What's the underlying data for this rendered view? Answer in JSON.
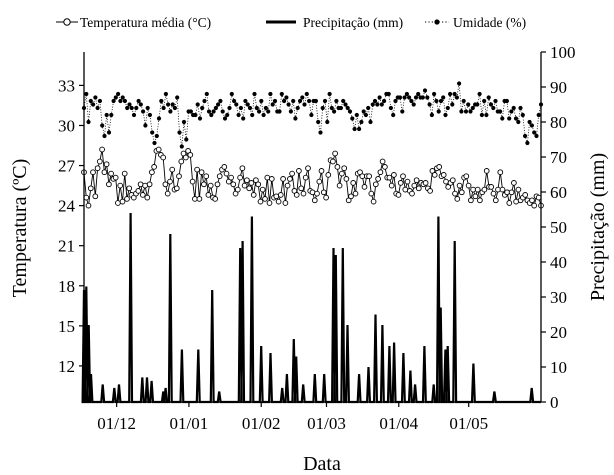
{
  "chart_data": {
    "type": "line",
    "xlabel": "Data",
    "ylabel_left": "Temperatura (ºC)",
    "ylabel_right": "Precipitação (mm)",
    "x_ticks": [
      "01/12",
      "01/01",
      "01/02",
      "01/03",
      "01/04",
      "01/05"
    ],
    "x_tick_day": [
      14,
      45,
      76,
      104,
      135,
      165
    ],
    "x_range_days": [
      0,
      196
    ],
    "ylim_left": [
      9.3,
      35.5
    ],
    "yticks_left": [
      "12",
      "15",
      "18",
      "21",
      "24",
      "27",
      "30",
      "33"
    ],
    "ylim_right": [
      0,
      100
    ],
    "yticks_right": [
      "0",
      "10",
      "20",
      "30",
      "40",
      "50",
      "60",
      "70",
      "80",
      "90",
      "100"
    ],
    "grid": false,
    "legend_position": "top",
    "colors": {
      "line": "#000000",
      "marker_fill": "#ffffff"
    },
    "series": [
      {
        "name": "Temperatura média (°C)",
        "axis": "left",
        "style": "solid-line-open-circle",
        "values": [
          26.5,
          24.6,
          24.0,
          25.3,
          26.5,
          24.7,
          26.8,
          27.3,
          28.2,
          26.5,
          27.1,
          25.6,
          26.4,
          26.0,
          26.1,
          24.2,
          25.5,
          24.3,
          26.4,
          24.5,
          25.3,
          24.8,
          24.6,
          24.9,
          25.1,
          25.6,
          24.8,
          25.5,
          24.6,
          25.6,
          26.5,
          26.9,
          28.1,
          28.2,
          27.8,
          27.6,
          25.6,
          24.9,
          25.8,
          26.7,
          25.2,
          25.3,
          26.2,
          27.3,
          27.9,
          27.6,
          28.1,
          27.8,
          25.8,
          24.5,
          26.7,
          24.5,
          26.5,
          25.6,
          26.2,
          24.8,
          25.5,
          24.6,
          24.5,
          25.6,
          26.2,
          26.7,
          26.9,
          26.4,
          25.8,
          26.1,
          25.6,
          24.9,
          25.2,
          26.1,
          26.8,
          25.5,
          25.9,
          25.3,
          25.7,
          24.8,
          25.9,
          25.6,
          24.3,
          25.2,
          24.5,
          26.1,
          24.2,
          26.0,
          24.6,
          24.7,
          24.3,
          24.8,
          26.0,
          24.2,
          25.5,
          26.0,
          26.4,
          25.1,
          24.8,
          26.6,
          25.3,
          24.9,
          26.1,
          26.8,
          25.1,
          25.0,
          24.4,
          24.9,
          25.8,
          26.6,
          25.0,
          24.6,
          26.3,
          27.4,
          27.3,
          27.9,
          26.9,
          25.5,
          26.4,
          26.8,
          26.0,
          24.4,
          24.7,
          25.7,
          24.9,
          26.4,
          26.5,
          26.2,
          25.4,
          26.2,
          26.2,
          24.9,
          24.3,
          25.6,
          26.0,
          26.5,
          27.3,
          26.9,
          26.1,
          26.1,
          25.5,
          26.3,
          24.9,
          24.8,
          25.7,
          26.2,
          25.2,
          25.8,
          25.1,
          24.9,
          25.5,
          25.9,
          25.3,
          25.7,
          25.6,
          25.7,
          25.3,
          25.1,
          26.6,
          26.3,
          26.8,
          26.9,
          26.2,
          26.3,
          25.8,
          25.4,
          25.7,
          25.9,
          24.9,
          24.5,
          25.5,
          25.0,
          26.1,
          26.2,
          25.5,
          24.4,
          25.2,
          24.7,
          25.2,
          24.4,
          25.0,
          25.2,
          26.6,
          25.4,
          25.4,
          24.9,
          24.4,
          25.2,
          26.5,
          25.2,
          24.8,
          25.0,
          24.2,
          25.0,
          25.7,
          24.3,
          25.2,
          24.4,
          24.6,
          24.8,
          24.4,
          24.2,
          24.4,
          24.0,
          24.7,
          24.6,
          24.0
        ]
      },
      {
        "name": "Precipitação (mm)",
        "axis": "right",
        "style": "thick-line",
        "events": [
          {
            "day": 0,
            "mm": 32
          },
          {
            "day": 1,
            "mm": 33
          },
          {
            "day": 2,
            "mm": 22
          },
          {
            "day": 3,
            "mm": 8
          },
          {
            "day": 8,
            "mm": 5
          },
          {
            "day": 13,
            "mm": 4
          },
          {
            "day": 15,
            "mm": 5
          },
          {
            "day": 20,
            "mm": 54
          },
          {
            "day": 25,
            "mm": 7
          },
          {
            "day": 27,
            "mm": 7
          },
          {
            "day": 29,
            "mm": 6
          },
          {
            "day": 34,
            "mm": 3
          },
          {
            "day": 35,
            "mm": 4
          },
          {
            "day": 37,
            "mm": 48
          },
          {
            "day": 42,
            "mm": 15
          },
          {
            "day": 49,
            "mm": 15
          },
          {
            "day": 55,
            "mm": 32
          },
          {
            "day": 58,
            "mm": 3
          },
          {
            "day": 67,
            "mm": 44
          },
          {
            "day": 68,
            "mm": 46
          },
          {
            "day": 72,
            "mm": 53
          },
          {
            "day": 76,
            "mm": 16
          },
          {
            "day": 80,
            "mm": 14
          },
          {
            "day": 85,
            "mm": 4
          },
          {
            "day": 87,
            "mm": 8
          },
          {
            "day": 90,
            "mm": 18
          },
          {
            "day": 91,
            "mm": 13
          },
          {
            "day": 94,
            "mm": 5
          },
          {
            "day": 99,
            "mm": 8
          },
          {
            "day": 103,
            "mm": 8
          },
          {
            "day": 107,
            "mm": 44
          },
          {
            "day": 108,
            "mm": 42
          },
          {
            "day": 111,
            "mm": 44
          },
          {
            "day": 113,
            "mm": 22
          },
          {
            "day": 118,
            "mm": 8
          },
          {
            "day": 122,
            "mm": 10
          },
          {
            "day": 125,
            "mm": 25
          },
          {
            "day": 128,
            "mm": 22
          },
          {
            "day": 131,
            "mm": 16
          },
          {
            "day": 133,
            "mm": 17
          },
          {
            "day": 137,
            "mm": 14
          },
          {
            "day": 140,
            "mm": 9
          },
          {
            "day": 142,
            "mm": 5
          },
          {
            "day": 146,
            "mm": 16
          },
          {
            "day": 150,
            "mm": 5
          },
          {
            "day": 152,
            "mm": 53
          },
          {
            "day": 153,
            "mm": 27
          },
          {
            "day": 155,
            "mm": 15
          },
          {
            "day": 156,
            "mm": 16
          },
          {
            "day": 159,
            "mm": 46
          },
          {
            "day": 167,
            "mm": 11
          },
          {
            "day": 176,
            "mm": 3
          },
          {
            "day": 192,
            "mm": 4
          }
        ]
      },
      {
        "name": "Umidade (%)",
        "axis": "right",
        "style": "dotted-line-filled-dot",
        "values": [
          84,
          88,
          80,
          86,
          85,
          87,
          84,
          86,
          79,
          76,
          82,
          77,
          82,
          86,
          87,
          88,
          86,
          87,
          86,
          84,
          85,
          84,
          82,
          84,
          86,
          85,
          83,
          79,
          84,
          82,
          77,
          74,
          76,
          81,
          86,
          84,
          88,
          85,
          83,
          85,
          84,
          87,
          77,
          73,
          80,
          75,
          83,
          83,
          82,
          82,
          85,
          81,
          84,
          86,
          88,
          83,
          82,
          83,
          84,
          85,
          86,
          83,
          81,
          82,
          84,
          88,
          86,
          85,
          82,
          84,
          81,
          86,
          85,
          84,
          82,
          88,
          84,
          83,
          86,
          82,
          84,
          83,
          88,
          85,
          86,
          83,
          83,
          88,
          86,
          87,
          85,
          83,
          86,
          81,
          84,
          86,
          87,
          85,
          88,
          86,
          82,
          86,
          86,
          80,
          77,
          84,
          86,
          80,
          88,
          84,
          83,
          86,
          84,
          84,
          86,
          85,
          84,
          83,
          81,
          78,
          82,
          78,
          80,
          83,
          82,
          84,
          80,
          85,
          86,
          85,
          87,
          85,
          86,
          88,
          88,
          84,
          82,
          86,
          87,
          87,
          83,
          87,
          88,
          87,
          86,
          85,
          87,
          88,
          87,
          87,
          89,
          87,
          85,
          82,
          88,
          86,
          83,
          86,
          87,
          82,
          84,
          88,
          85,
          88,
          87,
          91,
          83,
          86,
          83,
          85,
          83,
          84,
          85,
          85,
          88,
          82,
          86,
          82,
          87,
          85,
          84,
          86,
          83,
          83,
          81,
          86,
          86,
          81,
          83,
          84,
          81,
          80,
          84,
          82,
          76,
          74,
          80,
          79,
          77,
          76,
          82,
          85
        ]
      }
    ]
  }
}
